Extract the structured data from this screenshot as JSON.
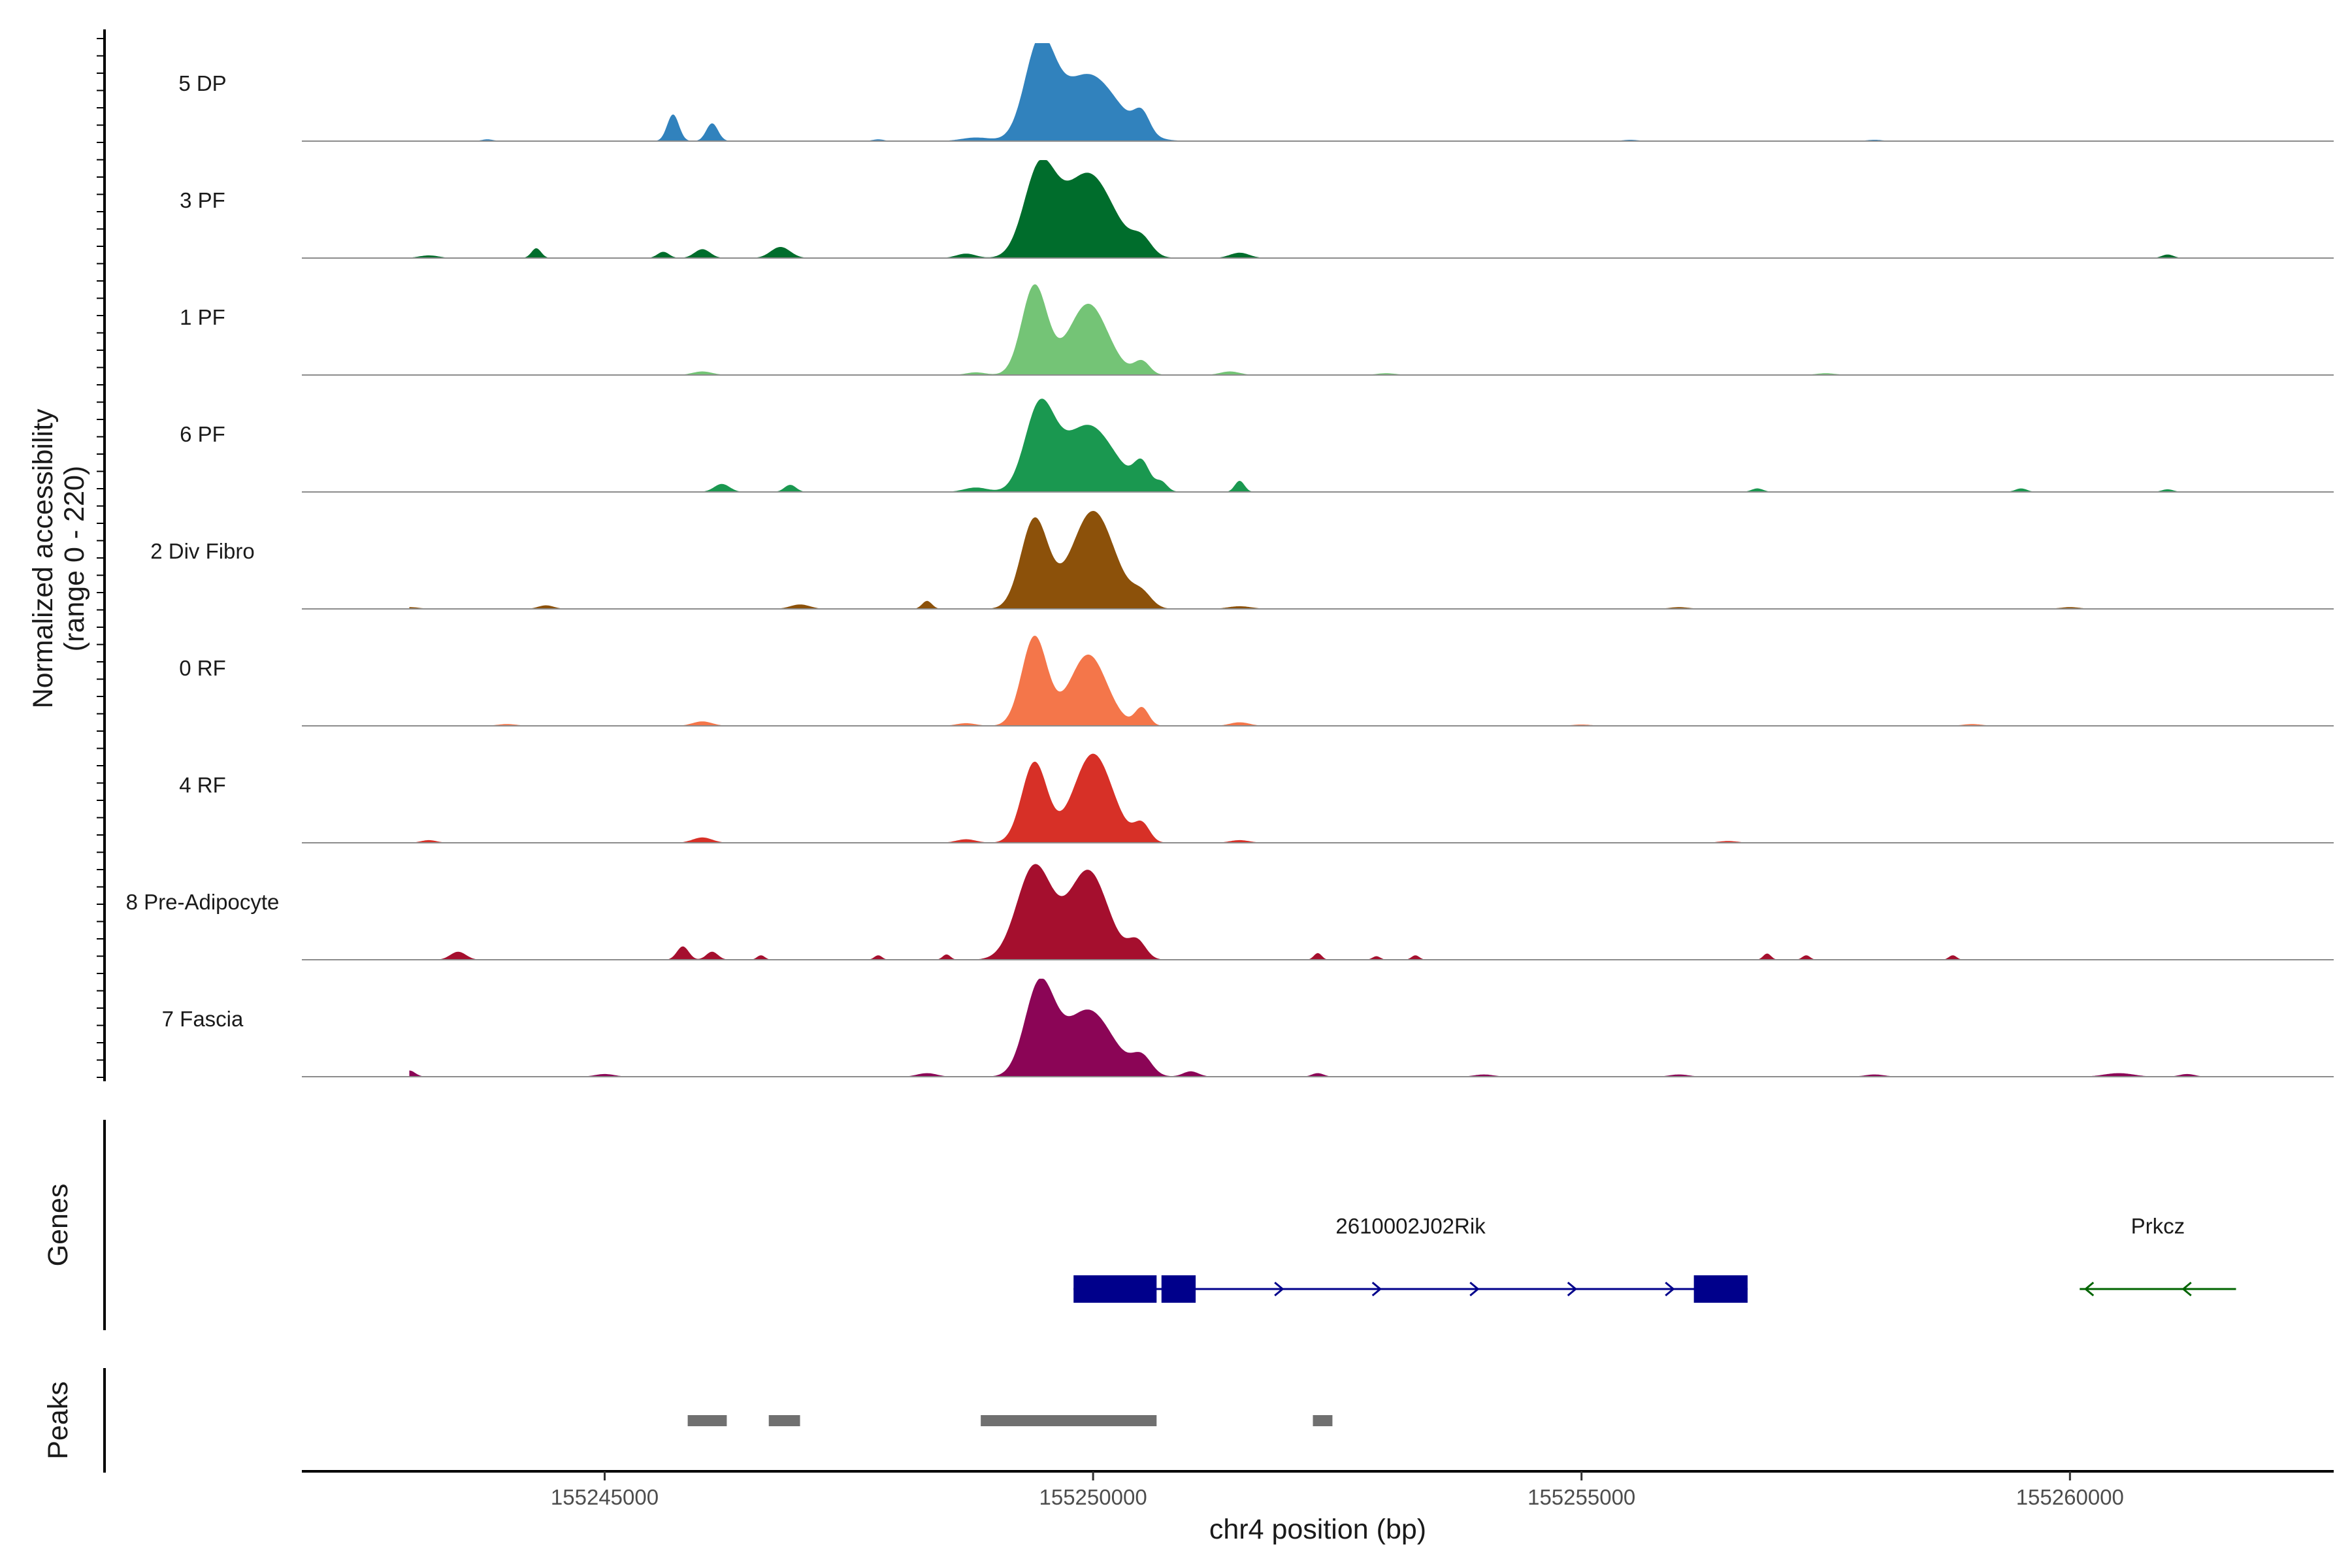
{
  "chart_data": {
    "type": "area",
    "title": "",
    "xlabel": "chr4 position (bp)",
    "ylabel": "Normalized accessibility",
    "ylabel_range": "(range 0 - 220)",
    "ylim": [
      0,
      220
    ],
    "xlim": [
      155241900,
      155262700
    ],
    "x_ticks": [
      155245000,
      155250000,
      155255000,
      155260000
    ],
    "x_tick_labels": [
      "155245000",
      "155250000",
      "155255000",
      "155260000"
    ],
    "genes_label": "Genes",
    "peaks_label": "Peaks",
    "tracks": [
      {
        "name": "5 DP",
        "color": "#3182bd",
        "peaks": [
          [
            155245700,
            60,
            60
          ],
          [
            155246100,
            40,
            60
          ],
          [
            155249450,
            200,
            150
          ],
          [
            155249950,
            150,
            300
          ],
          [
            155250500,
            45,
            80
          ],
          [
            155248800,
            8,
            150
          ],
          [
            155243800,
            4,
            60
          ],
          [
            155247800,
            4,
            60
          ],
          [
            155255500,
            3,
            80
          ],
          [
            155258000,
            3,
            80
          ]
        ]
      },
      {
        "name": "3 PF",
        "color": "#006d2c",
        "peaks": [
          [
            155249450,
            190,
            160
          ],
          [
            155249950,
            190,
            260
          ],
          [
            155250500,
            35,
            100
          ],
          [
            155244300,
            22,
            50
          ],
          [
            155245600,
            14,
            60
          ],
          [
            155246000,
            20,
            80
          ],
          [
            155246800,
            25,
            100
          ],
          [
            155251500,
            12,
            100
          ],
          [
            155248700,
            10,
            100
          ],
          [
            155261000,
            8,
            60
          ],
          [
            155243200,
            6,
            100
          ]
        ]
      },
      {
        "name": "1 PF",
        "color": "#74c476",
        "peaks": [
          [
            155249400,
            200,
            130
          ],
          [
            155249950,
            160,
            200
          ],
          [
            155250500,
            30,
            80
          ],
          [
            155251400,
            8,
            100
          ],
          [
            155246000,
            8,
            100
          ],
          [
            155248800,
            6,
            100
          ],
          [
            155253000,
            4,
            100
          ],
          [
            155257500,
            4,
            100
          ]
        ]
      },
      {
        "name": "6 PF",
        "color": "#1a9850",
        "peaks": [
          [
            155249450,
            180,
            150
          ],
          [
            155249950,
            150,
            270
          ],
          [
            155250500,
            55,
            80
          ],
          [
            155250700,
            20,
            60
          ],
          [
            155251500,
            25,
            50
          ],
          [
            155246200,
            18,
            80
          ],
          [
            155246900,
            16,
            60
          ],
          [
            155248800,
            10,
            120
          ],
          [
            155256800,
            8,
            60
          ],
          [
            155261000,
            6,
            60
          ],
          [
            155259500,
            8,
            60
          ]
        ]
      },
      {
        "name": "2 Div Fibro",
        "color": "#8c510a",
        "peaks": [
          [
            155249400,
            200,
            140
          ],
          [
            155250000,
            220,
            220
          ],
          [
            155250500,
            30,
            100
          ],
          [
            155248300,
            18,
            50
          ],
          [
            155247000,
            10,
            100
          ],
          [
            155244400,
            8,
            80
          ],
          [
            155251500,
            6,
            120
          ],
          [
            155243000,
            4,
            100
          ],
          [
            155256000,
            4,
            100
          ],
          [
            155260000,
            4,
            100
          ]
        ]
      },
      {
        "name": "0 RF",
        "color": "#f4764a",
        "peaks": [
          [
            155249400,
            200,
            130
          ],
          [
            155249950,
            160,
            190
          ],
          [
            155250500,
            40,
            70
          ],
          [
            155246000,
            10,
            100
          ],
          [
            155251500,
            8,
            100
          ],
          [
            155248700,
            6,
            100
          ],
          [
            155259000,
            4,
            100
          ],
          [
            155244000,
            4,
            100
          ],
          [
            155255000,
            3,
            100
          ]
        ]
      },
      {
        "name": "4 RF",
        "color": "#d73027",
        "peaks": [
          [
            155249400,
            180,
            130
          ],
          [
            155250000,
            200,
            200
          ],
          [
            155250500,
            40,
            80
          ],
          [
            155246000,
            12,
            100
          ],
          [
            155243200,
            6,
            80
          ],
          [
            155248700,
            8,
            100
          ],
          [
            155251500,
            6,
            100
          ],
          [
            155256500,
            4,
            100
          ]
        ]
      },
      {
        "name": "8 Pre-Adipocyte",
        "color": "#a50f2e",
        "peaks": [
          [
            155249400,
            210,
            180
          ],
          [
            155249950,
            200,
            200
          ],
          [
            155250450,
            40,
            90
          ],
          [
            155243500,
            18,
            80
          ],
          [
            155245800,
            30,
            60
          ],
          [
            155246100,
            18,
            60
          ],
          [
            155246600,
            10,
            40
          ],
          [
            155252300,
            15,
            40
          ],
          [
            155252900,
            8,
            40
          ],
          [
            155253300,
            10,
            40
          ],
          [
            155256900,
            14,
            40
          ],
          [
            155257300,
            10,
            40
          ],
          [
            155258800,
            10,
            40
          ],
          [
            155248500,
            12,
            40
          ],
          [
            155247800,
            10,
            40
          ]
        ]
      },
      {
        "name": "7 Fascia",
        "color": "#8b0556",
        "peaks": [
          [
            155249450,
            200,
            150
          ],
          [
            155249950,
            150,
            250
          ],
          [
            155250500,
            40,
            100
          ],
          [
            155243000,
            14,
            60
          ],
          [
            155251000,
            12,
            80
          ],
          [
            155252300,
            8,
            60
          ],
          [
            155248300,
            8,
            100
          ],
          [
            155245000,
            6,
            100
          ],
          [
            155260500,
            8,
            150
          ],
          [
            155261200,
            6,
            80
          ],
          [
            155254000,
            5,
            100
          ],
          [
            155256000,
            5,
            100
          ],
          [
            155258000,
            5,
            100
          ]
        ]
      }
    ],
    "genes": [
      {
        "name": "2610002J02Rik",
        "strand": "+",
        "color": "#00008b",
        "start": 155249800,
        "end": 155256700,
        "exons": [
          [
            155249800,
            155250650
          ],
          [
            155250700,
            155251050
          ],
          [
            155256150,
            155256700
          ]
        ]
      },
      {
        "name": "Prkcz",
        "strand": "-",
        "color": "#006400",
        "start": 155260100,
        "end": 155261700,
        "exons": []
      }
    ],
    "peaks": [
      [
        155245850,
        155246250
      ],
      [
        155246680,
        155247000
      ],
      [
        155248850,
        155250650
      ],
      [
        155252250,
        155252450
      ]
    ],
    "peak_color": "#707070"
  }
}
